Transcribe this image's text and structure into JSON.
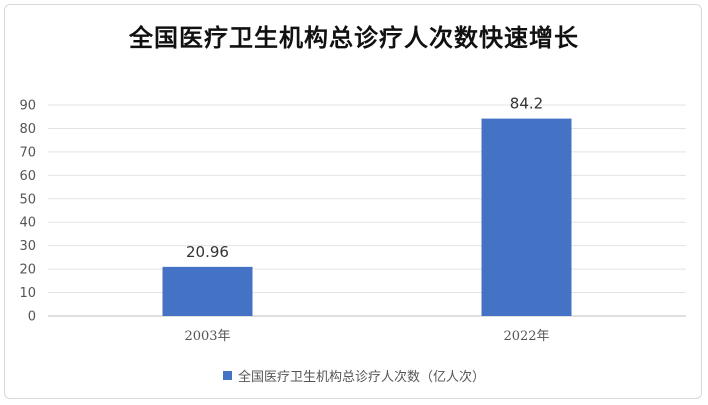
{
  "chart_data": {
    "type": "bar",
    "title": "全国医疗卫生机构总诊疗人次数快速增长",
    "xlabel": "",
    "ylabel": "",
    "categories": [
      "2003年",
      "2022年"
    ],
    "series": [
      {
        "name": "全国医疗卫生机构总诊疗人次数（亿人次）",
        "values": [
          20.96,
          84.2
        ],
        "data_labels": [
          "20.96",
          "84.2"
        ],
        "color": "#4472C4"
      }
    ],
    "ylim": [
      0,
      90
    ],
    "yticks": [
      0,
      10,
      20,
      30,
      40,
      50,
      60,
      70,
      80,
      90
    ],
    "grid": true,
    "legend_position": "bottom"
  }
}
